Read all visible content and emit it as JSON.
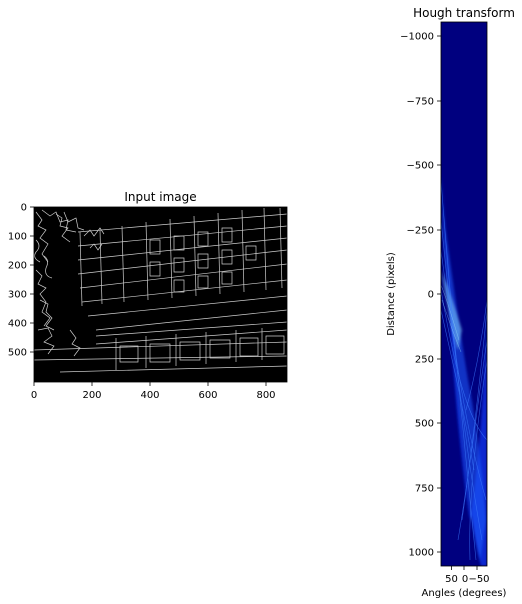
{
  "chart_data": [
    {
      "type": "image",
      "title": "Input image",
      "xlabel": "",
      "ylabel": "",
      "xlim": [
        0,
        870
      ],
      "ylim": [
        600,
        0
      ],
      "xticks": [
        "0",
        "200",
        "400",
        "600",
        "800"
      ],
      "yticks": [
        "0",
        "100",
        "200",
        "300",
        "400",
        "500"
      ],
      "colormap": "gray"
    },
    {
      "type": "heatmap",
      "title": "Hough transform",
      "xlabel": "Angles (degrees)",
      "ylabel": "Distance (pixels)",
      "xlim": [
        90,
        -90
      ],
      "ylim": [
        1050,
        -1050
      ],
      "xticks": [
        "50",
        "0",
        "−50"
      ],
      "yticks": [
        "−1000",
        "−750",
        "−500",
        "−250",
        "0",
        "250",
        "500",
        "750",
        "1000"
      ],
      "colormap": "jet"
    }
  ],
  "colors": {
    "image_background": "#000000",
    "edge_stroke": "#cfcfcf",
    "heatmap_background": "#00007f",
    "heatmap_bright": "#1e5bff",
    "heatmap_peak": "#7fd4ff"
  }
}
